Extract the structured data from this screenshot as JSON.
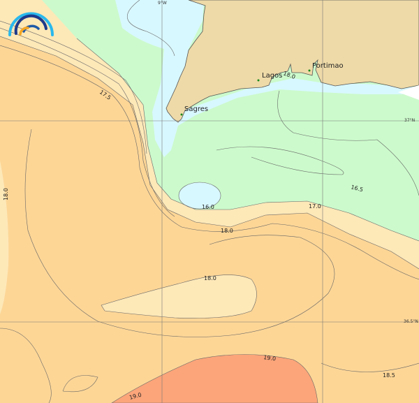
{
  "map": {
    "colors": {
      "land": "#eedaa8",
      "sea_lt_16": "#d8f8ff",
      "sea_16_17": "#ccfacc",
      "sea_17_18": "#fde8b8",
      "sea_18_19": "#fdd696",
      "sea_gt_19": "#fca57a"
    },
    "logo": {
      "icon": "wave-arcs-logo"
    },
    "grid_labels": {
      "lon_9w": "9°W",
      "lat_37n": "37°N",
      "lat_365n": "36.5°N"
    },
    "places": [
      {
        "name": "Sagres"
      },
      {
        "name": "Lagos"
      },
      {
        "name": "Portimao"
      }
    ],
    "contour_labels": [
      "17.5",
      "18.0",
      "16.0",
      "17.0",
      "18.0",
      "16.5",
      "18.0",
      "18.0",
      "19.0",
      "18.5",
      "19.0"
    ]
  }
}
